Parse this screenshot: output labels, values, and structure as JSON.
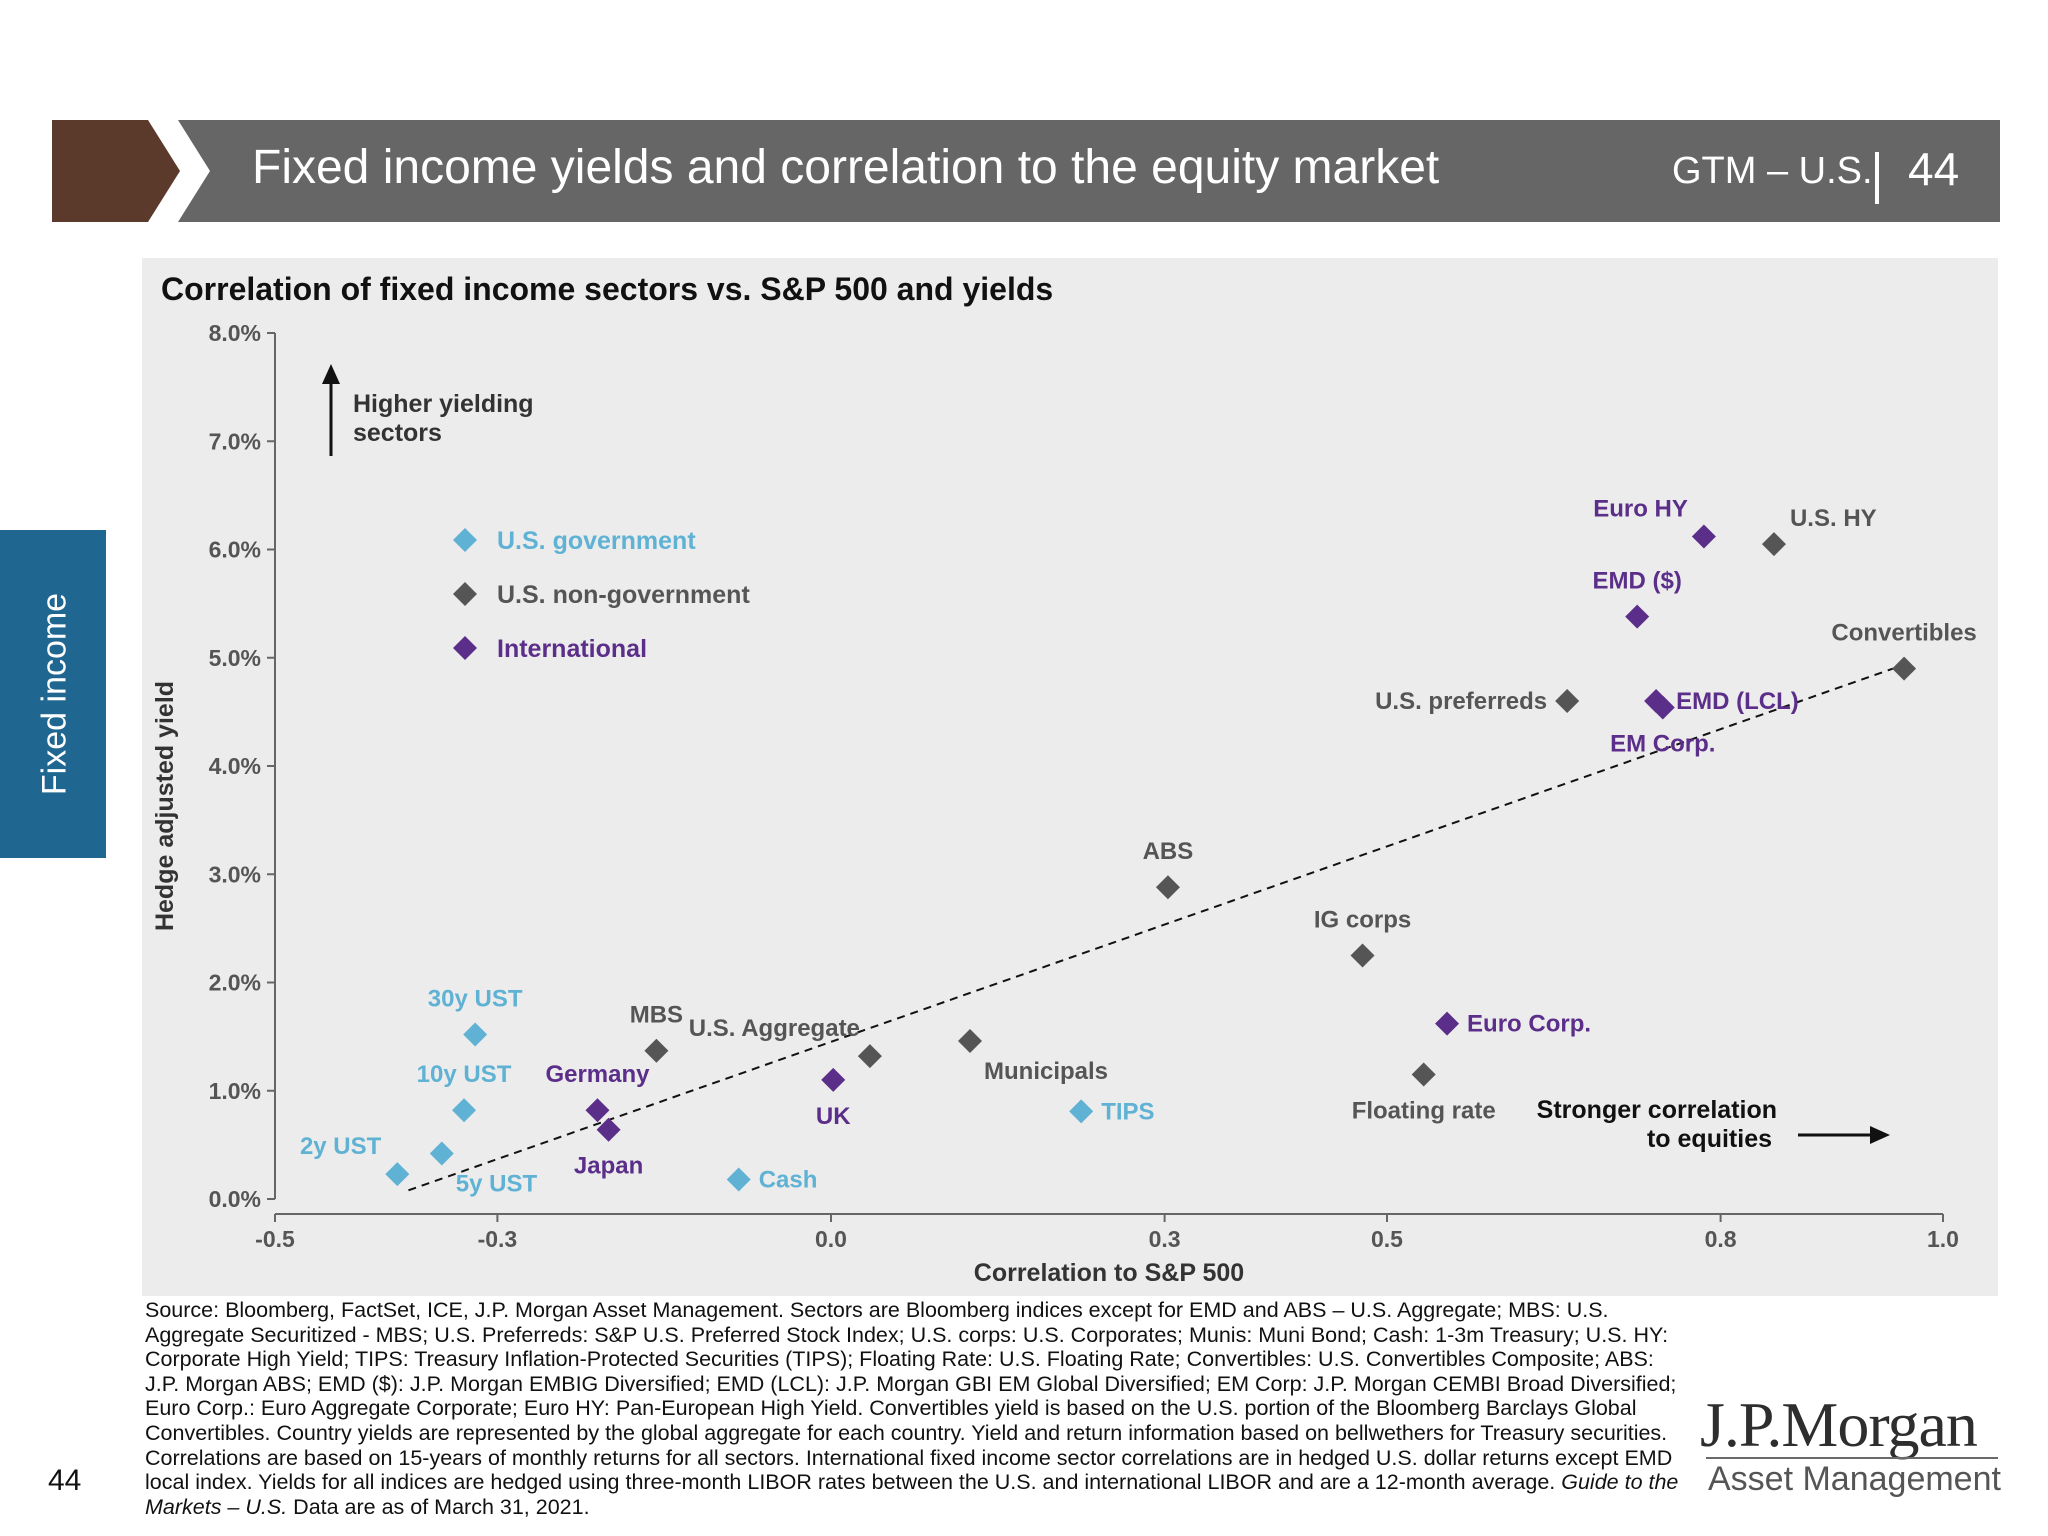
{
  "header": {
    "title": "Fixed income yields and correlation to the equity market",
    "series": "GTM – U.S.",
    "page": "44",
    "bar_color": "#666666",
    "accent_color": "#5c3a2b"
  },
  "side_tab": {
    "label": "Fixed income",
    "color": "#1f6690"
  },
  "chart_data": {
    "type": "scatter",
    "title": "Correlation of fixed income sectors vs. S&P 500 and yields",
    "xlabel": "Correlation to S&P 500",
    "ylabel": "Hedge adjusted yield",
    "xlim": [
      -0.5,
      1.0
    ],
    "ylim": [
      0.0,
      8.0
    ],
    "x_ticks": [
      {
        "value": -0.5,
        "label": "-0.5"
      },
      {
        "value": -0.3,
        "label": "-0.3"
      },
      {
        "value": 0.0,
        "label": "0.0"
      },
      {
        "value": 0.3,
        "label": "0.3"
      },
      {
        "value": 0.5,
        "label": "0.5"
      },
      {
        "value": 0.8,
        "label": "0.8"
      },
      {
        "value": 1.0,
        "label": "1.0"
      }
    ],
    "y_ticks": [
      {
        "value": 0,
        "label": "0.0%"
      },
      {
        "value": 1,
        "label": "1.0%"
      },
      {
        "value": 2,
        "label": "2.0%"
      },
      {
        "value": 3,
        "label": "3.0%"
      },
      {
        "value": 4,
        "label": "4.0%"
      },
      {
        "value": 5,
        "label": "5.0%"
      },
      {
        "value": 6,
        "label": "6.0%"
      },
      {
        "value": 7,
        "label": "7.0%"
      },
      {
        "value": 8,
        "label": "8.0%"
      }
    ],
    "grid": false,
    "legend_position": "top-left",
    "series": [
      {
        "name": "U.S. government",
        "color": "#5fb2d4",
        "points": [
          {
            "label": "2y UST",
            "x": -0.39,
            "y": 0.23,
            "label_pos": "upper-left"
          },
          {
            "label": "5y UST",
            "x": -0.35,
            "y": 0.42,
            "label_pos": "below-right"
          },
          {
            "label": "10y UST",
            "x": -0.33,
            "y": 0.82,
            "label_pos": "above"
          },
          {
            "label": "30y UST",
            "x": -0.32,
            "y": 1.52,
            "label_pos": "above"
          },
          {
            "label": "Cash",
            "x": -0.083,
            "y": 0.18,
            "label_pos": "right"
          },
          {
            "label": "TIPS",
            "x": 0.225,
            "y": 0.81,
            "label_pos": "right"
          }
        ]
      },
      {
        "name": "U.S. non-government",
        "color": "#555555",
        "points": [
          {
            "label": "MBS",
            "x": -0.157,
            "y": 1.37,
            "label_pos": "above"
          },
          {
            "label": "U.S. Aggregate",
            "x": 0.035,
            "y": 1.32,
            "label_pos": "above-left"
          },
          {
            "label": "Municipals",
            "x": 0.125,
            "y": 1.46,
            "label_pos": "below-right"
          },
          {
            "label": "ABS",
            "x": 0.303,
            "y": 2.88,
            "label_pos": "above"
          },
          {
            "label": "IG corps",
            "x": 0.478,
            "y": 2.25,
            "label_pos": "above"
          },
          {
            "label": "Floating rate",
            "x": 0.533,
            "y": 1.15,
            "label_pos": "below"
          },
          {
            "label": "U.S. preferreds",
            "x": 0.662,
            "y": 4.6,
            "label_pos": "left"
          },
          {
            "label": "U.S. HY",
            "x": 0.848,
            "y": 6.05,
            "label_pos": "upper-right"
          },
          {
            "label": "Convertibles",
            "x": 0.965,
            "y": 4.9,
            "label_pos": "above"
          }
        ]
      },
      {
        "name": "International",
        "color": "#5b2e8a",
        "points": [
          {
            "label": "Germany",
            "x": -0.21,
            "y": 0.82,
            "label_pos": "above"
          },
          {
            "label": "Japan",
            "x": -0.2,
            "y": 0.64,
            "label_pos": "below"
          },
          {
            "label": "UK",
            "x": 0.002,
            "y": 1.1,
            "label_pos": "below"
          },
          {
            "label": "Euro Corp.",
            "x": 0.554,
            "y": 1.62,
            "label_pos": "right"
          },
          {
            "label": "EMD ($)",
            "x": 0.725,
            "y": 5.38,
            "label_pos": "above"
          },
          {
            "label": "EMD (LCL)",
            "x": 0.742,
            "y": 4.6,
            "label_pos": "right"
          },
          {
            "label": "EM Corp.",
            "x": 0.748,
            "y": 4.54,
            "label_pos": "below"
          },
          {
            "label": "Euro HY",
            "x": 0.785,
            "y": 6.12,
            "label_pos": "upper-left"
          }
        ]
      }
    ],
    "trendline": {
      "x1": -0.38,
      "y1": 0.08,
      "x2": 0.955,
      "y2": 4.9,
      "style": "dashed"
    },
    "annotations": [
      {
        "text_lines": [
          "Higher yielding",
          "sectors"
        ],
        "arrow": "up",
        "position": "top-left"
      },
      {
        "text_lines": [
          "Stronger correlation",
          "to equities"
        ],
        "arrow": "right",
        "position": "bottom-right"
      }
    ]
  },
  "footnote": {
    "text_main": "Source: Bloomberg, FactSet, ICE, J.P. Morgan Asset Management. Sectors are Bloomberg indices except for EMD and ABS – U.S. Aggregate; MBS: U.S. Aggregate Securitized - MBS; U.S. Preferreds: S&P U.S. Preferred Stock Index; U.S. corps: U.S. Corporates; Munis: Muni Bond; Cash: 1-3m Treasury; U.S. HY: Corporate High Yield; TIPS: Treasury Inflation-Protected Securities (TIPS); Floating Rate: U.S. Floating Rate; Convertibles: U.S. Convertibles Composite; ABS: J.P. Morgan ABS; EMD ($): J.P. Morgan EMBIG Diversified; EMD (LCL): J.P. Morgan GBI EM Global Diversified; EM Corp: J.P. Morgan CEMBI Broad Diversified; Euro Corp.: Euro Aggregate Corporate; Euro HY: Pan-European High Yield. Convertibles yield is based on the U.S. portion of the Bloomberg Barclays Global Convertibles. Country yields are represented by the global aggregate for each country. Yield and return information based on bellwethers for Treasury securities. Correlations are based on 15-years of monthly returns for all sectors. International fixed income sector correlations are in hedged U.S. dollar returns except EMD local index. Yields for all indices are hedged using three-month LIBOR rates between the U.S. and international LIBOR and are a 12-month average. ",
    "text_italic": "Guide to the Markets – U.S.",
    "text_end": " Data are as of March 31, 2021."
  },
  "page_number": "44",
  "logo": {
    "name": "J.P.Morgan",
    "subtitle": "Asset Management"
  }
}
